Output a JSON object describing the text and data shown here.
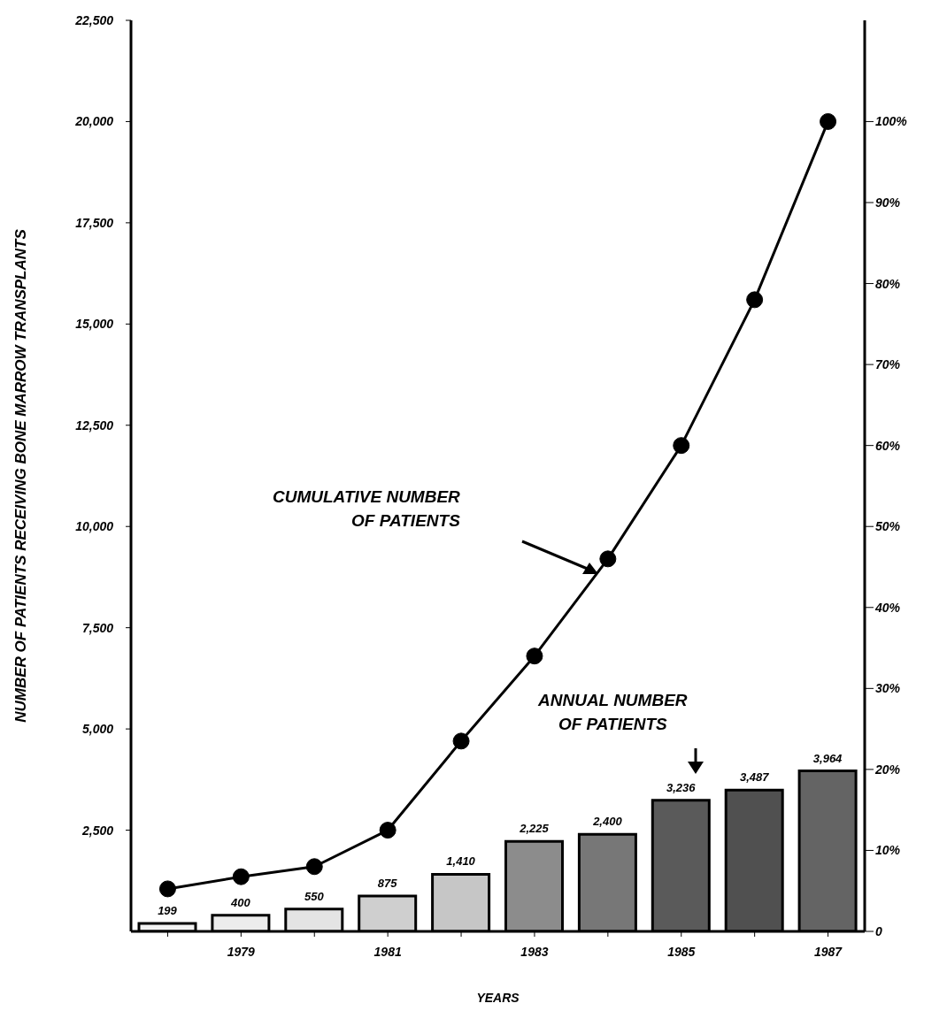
{
  "chart_data": {
    "type": "bar",
    "xlabel": "YEARS",
    "ylabel": "NUMBER OF PATIENTS RECEIVING BONE MARROW TRANSPLANTS",
    "categories": [
      null,
      "1979",
      null,
      "1981",
      null,
      "1983",
      null,
      "1985",
      null,
      "1987"
    ],
    "series": [
      {
        "colors": [
          "#f2f2f2",
          "#ececec",
          "#e4e4e4",
          "#cfcfcf",
          "#c6c6c6",
          "#8c8c8c",
          "#777777",
          "#5a5a5a",
          "#505050",
          "#646464"
        ],
        "values": [
          199,
          400,
          550,
          875,
          1410,
          2225,
          2400,
          3236,
          3487,
          3964
        ],
        "value_labels": [
          "199",
          "400",
          "550",
          "875",
          "1,410",
          "2,225",
          "2,400",
          "3,236",
          "3,487",
          "3,964"
        ]
      },
      {
        "type": "line",
        "color": "#000000",
        "values": [
          1050,
          1350,
          1600,
          2500,
          4700,
          6800,
          9200,
          12000,
          15600,
          20000
        ]
      }
    ],
    "ylim": [
      0,
      22500
    ],
    "yticks": [
      {
        "value": 2500,
        "label": "2,500"
      },
      {
        "value": 5000,
        "label": "5,000"
      },
      {
        "value": 7500,
        "label": "7,500"
      },
      {
        "value": 10000,
        "label": "10,000"
      },
      {
        "value": 12500,
        "label": "12,500"
      },
      {
        "value": 15000,
        "label": "15,000"
      },
      {
        "value": 17500,
        "label": "17,500"
      },
      {
        "value": 20000,
        "label": "20,000"
      },
      {
        "value": 22500,
        "label": "22,500"
      }
    ],
    "y2lim": [
      0,
      112.5
    ],
    "y2ticks": [
      {
        "value": 0,
        "label": "0"
      },
      {
        "value": 10,
        "label": "10%"
      },
      {
        "value": 20,
        "label": "20%"
      },
      {
        "value": 30,
        "label": "30%"
      },
      {
        "value": 40,
        "label": "40%"
      },
      {
        "value": 50,
        "label": "50%"
      },
      {
        "value": 60,
        "label": "60%"
      },
      {
        "value": 70,
        "label": "70%"
      },
      {
        "value": 80,
        "label": "80%"
      },
      {
        "value": 90,
        "label": "90%"
      },
      {
        "value": 100,
        "label": "100%"
      }
    ],
    "annotations": [
      "CUMULATIVE NUMBER\nOF PATIENTS",
      "ANNUAL NUMBER\nOF PATIENTS"
    ],
    "grid": false,
    "legend": false,
    "marker": "circle",
    "line_style": "solid"
  }
}
